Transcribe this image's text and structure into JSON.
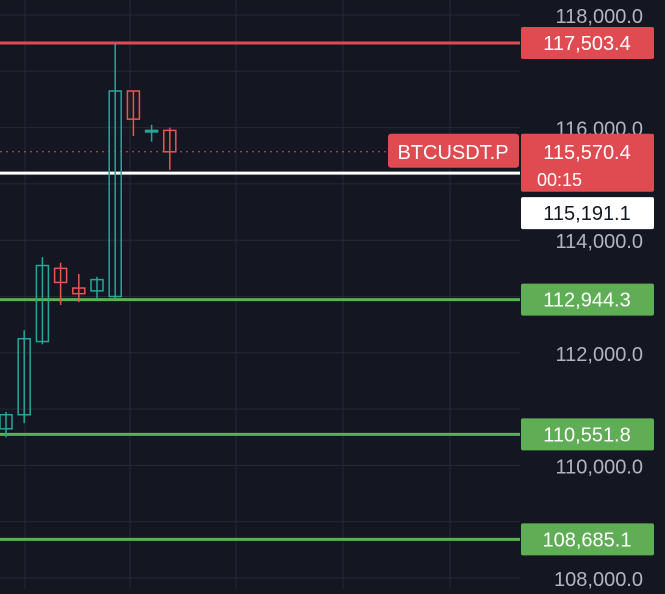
{
  "chart_data": {
    "type": "candlestick",
    "symbol": "BTCUSDT.P",
    "countdown": "00:15",
    "y_axis": {
      "ticks": [
        "118,000.0",
        "116,000.0",
        "114,000.0",
        "112,000.0",
        "110,000.0",
        "108,000.0"
      ],
      "tick_values": [
        118000,
        116000,
        114000,
        112000,
        110000,
        108000
      ],
      "ylim": [
        107900,
        118200
      ]
    },
    "candles": [
      {
        "open": 110650,
        "high": 110950,
        "low": 110500,
        "close": 110900
      },
      {
        "open": 110900,
        "high": 112400,
        "low": 110750,
        "close": 112250
      },
      {
        "open": 112200,
        "high": 113700,
        "low": 112150,
        "close": 113550
      },
      {
        "open": 113500,
        "high": 113600,
        "low": 112850,
        "close": 113250
      },
      {
        "open": 113150,
        "high": 113400,
        "low": 112900,
        "close": 113050
      },
      {
        "open": 113100,
        "high": 113350,
        "low": 112950,
        "close": 113300
      },
      {
        "open": 113000,
        "high": 117503.4,
        "low": 112950,
        "close": 116650
      },
      {
        "open": 116650,
        "high": 116650,
        "low": 115850,
        "close": 116150
      },
      {
        "open": 115950,
        "high": 116050,
        "low": 115750,
        "close": 115950
      },
      {
        "open": 115950,
        "high": 116000,
        "low": 115250,
        "close": 115570.4
      }
    ],
    "price_lines": [
      {
        "label": "117,503.4",
        "value": 117503.4,
        "kind": "resistance",
        "color": "#e04b52"
      },
      {
        "label": "115,191.1",
        "value": 115191.1,
        "kind": "marker",
        "color": "#ffffff"
      },
      {
        "label": "112,944.3",
        "value": 112944.3,
        "kind": "support",
        "color": "#5fae55"
      },
      {
        "label": "110,551.8",
        "value": 110551.8,
        "kind": "support",
        "color": "#5fae55"
      },
      {
        "label": "108,685.1",
        "value": 108685.1,
        "kind": "support",
        "color": "#5fae55"
      }
    ],
    "last_price": {
      "label": "115,570.4",
      "value": 115570.4,
      "color": "#e04b52"
    },
    "colors": {
      "background": "#141722",
      "grid": "#262a36",
      "up": "#26a69a",
      "down": "#ef5350",
      "axis_text": "#b2b5be"
    },
    "grid": true
  }
}
